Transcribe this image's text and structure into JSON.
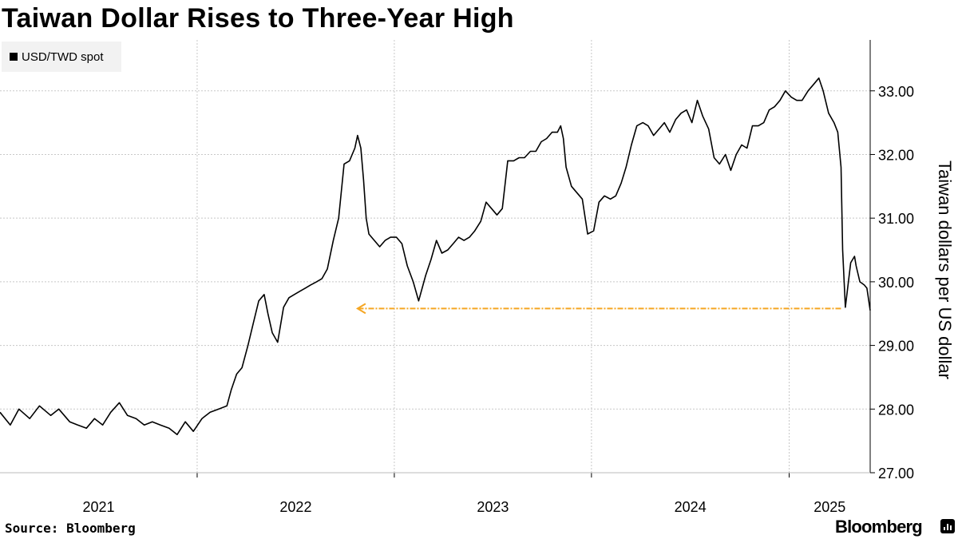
{
  "title": "Taiwan Dollar Rises to Three-Year High",
  "source": "Source: Bloomberg",
  "brand": "Bloomberg",
  "colors": {
    "line": "#000000",
    "arrow": "#f5a623",
    "grid": "#c8c8c8"
  },
  "chart_data": {
    "type": "line",
    "title": "Taiwan Dollar Rises to Three-Year High",
    "xlabel": "",
    "ylabel": "Taiwan dollars per US dollar",
    "ylim": [
      27,
      33.8
    ],
    "x_range": [
      "2021-01-01",
      "2025-05-31"
    ],
    "y_axis_side": "right",
    "grid": true,
    "legend_position": "top-left",
    "y_ticks": [
      "27.00",
      "28.00",
      "29.00",
      "30.00",
      "31.00",
      "32.00",
      "33.00"
    ],
    "x_ticks": [
      "2021",
      "2022",
      "2023",
      "2024",
      "2025"
    ],
    "series": [
      {
        "name": "USD/TWD spot",
        "x": [
          "2021-01-01",
          "2021-01-20",
          "2021-02-05",
          "2021-02-25",
          "2021-03-15",
          "2021-04-05",
          "2021-04-20",
          "2021-05-10",
          "2021-05-25",
          "2021-06-10",
          "2021-06-25",
          "2021-07-10",
          "2021-07-25",
          "2021-08-10",
          "2021-08-25",
          "2021-09-10",
          "2021-09-25",
          "2021-10-10",
          "2021-10-25",
          "2021-11-10",
          "2021-11-25",
          "2021-12-10",
          "2021-12-25",
          "2022-01-10",
          "2022-01-25",
          "2022-02-10",
          "2022-02-25",
          "2022-03-05",
          "2022-03-15",
          "2022-03-25",
          "2022-04-05",
          "2022-04-15",
          "2022-04-25",
          "2022-05-05",
          "2022-05-12",
          "2022-05-20",
          "2022-05-30",
          "2022-06-10",
          "2022-06-20",
          "2022-06-30",
          "2022-07-10",
          "2022-07-20",
          "2022-07-30",
          "2022-08-10",
          "2022-08-20",
          "2022-08-30",
          "2022-09-10",
          "2022-09-20",
          "2022-09-30",
          "2022-10-10",
          "2022-10-20",
          "2022-10-25",
          "2022-10-31",
          "2022-11-05",
          "2022-11-10",
          "2022-11-15",
          "2022-11-25",
          "2022-12-05",
          "2022-12-15",
          "2022-12-25",
          "2023-01-05",
          "2023-01-15",
          "2023-01-25",
          "2023-02-05",
          "2023-02-15",
          "2023-02-28",
          "2023-03-10",
          "2023-03-20",
          "2023-03-30",
          "2023-04-10",
          "2023-04-20",
          "2023-04-30",
          "2023-05-10",
          "2023-05-20",
          "2023-05-30",
          "2023-06-10",
          "2023-06-20",
          "2023-06-30",
          "2023-07-10",
          "2023-07-20",
          "2023-07-30",
          "2023-08-10",
          "2023-08-20",
          "2023-08-30",
          "2023-09-10",
          "2023-09-20",
          "2023-09-30",
          "2023-10-10",
          "2023-10-20",
          "2023-10-30",
          "2023-11-05",
          "2023-11-10",
          "2023-11-15",
          "2023-11-25",
          "2023-12-05",
          "2023-12-15",
          "2023-12-25",
          "2024-01-05",
          "2024-01-15",
          "2024-01-25",
          "2024-02-05",
          "2024-02-15",
          "2024-02-25",
          "2024-03-05",
          "2024-03-15",
          "2024-03-25",
          "2024-04-05",
          "2024-04-15",
          "2024-04-25",
          "2024-05-05",
          "2024-05-15",
          "2024-05-25",
          "2024-06-05",
          "2024-06-15",
          "2024-06-25",
          "2024-07-05",
          "2024-07-15",
          "2024-07-25",
          "2024-08-05",
          "2024-08-15",
          "2024-08-25",
          "2024-09-05",
          "2024-09-15",
          "2024-09-25",
          "2024-10-05",
          "2024-10-15",
          "2024-10-25",
          "2024-11-05",
          "2024-11-15",
          "2024-11-25",
          "2024-12-05",
          "2024-12-15",
          "2024-12-25",
          "2025-01-05",
          "2025-01-15",
          "2025-01-25",
          "2025-02-05",
          "2025-02-15",
          "2025-02-25",
          "2025-03-05",
          "2025-03-15",
          "2025-03-25",
          "2025-04-01",
          "2025-04-07",
          "2025-04-10",
          "2025-04-15",
          "2025-04-25",
          "2025-05-02",
          "2025-05-05",
          "2025-05-12",
          "2025-05-20",
          "2025-05-25",
          "2025-05-31"
        ],
        "values": [
          27.95,
          27.75,
          28.0,
          27.85,
          28.05,
          27.9,
          28.0,
          27.8,
          27.75,
          27.7,
          27.85,
          27.75,
          27.95,
          28.1,
          27.9,
          27.85,
          27.75,
          27.8,
          27.75,
          27.7,
          27.6,
          27.8,
          27.65,
          27.85,
          27.95,
          28.0,
          28.05,
          28.3,
          28.55,
          28.65,
          29.0,
          29.35,
          29.7,
          29.8,
          29.5,
          29.2,
          29.05,
          29.6,
          29.75,
          29.8,
          29.85,
          29.9,
          29.95,
          30.0,
          30.05,
          30.2,
          30.65,
          31.0,
          31.85,
          31.9,
          32.1,
          32.3,
          32.1,
          31.6,
          31.0,
          30.75,
          30.65,
          30.55,
          30.65,
          30.7,
          30.7,
          30.6,
          30.25,
          30.0,
          29.7,
          30.1,
          30.35,
          30.65,
          30.45,
          30.5,
          30.6,
          30.7,
          30.65,
          30.7,
          30.8,
          30.95,
          31.25,
          31.15,
          31.05,
          31.15,
          31.9,
          31.9,
          31.95,
          31.95,
          32.05,
          32.05,
          32.2,
          32.25,
          32.35,
          32.35,
          32.45,
          32.25,
          31.8,
          31.5,
          31.4,
          31.3,
          30.75,
          30.8,
          31.25,
          31.35,
          31.3,
          31.35,
          31.55,
          31.8,
          32.15,
          32.45,
          32.5,
          32.45,
          32.3,
          32.4,
          32.5,
          32.35,
          32.55,
          32.65,
          32.7,
          32.5,
          32.85,
          32.6,
          32.4,
          31.95,
          31.85,
          32.0,
          31.75,
          32.0,
          32.15,
          32.1,
          32.45,
          32.45,
          32.5,
          32.7,
          32.75,
          32.85,
          33.0,
          32.9,
          32.85,
          32.85,
          33.0,
          33.1,
          33.2,
          33.0,
          32.65,
          32.5,
          32.35,
          31.8,
          30.5,
          29.6,
          30.3,
          30.4,
          30.25,
          30.0,
          29.95,
          29.9,
          29.55
        ],
        "color": "#000000"
      }
    ],
    "annotations": [
      {
        "type": "dashed-arrow",
        "from": [
          "2025-04-07",
          29.58
        ],
        "to": [
          "2022-10-25",
          29.58
        ],
        "color": "#f5a623"
      }
    ]
  }
}
